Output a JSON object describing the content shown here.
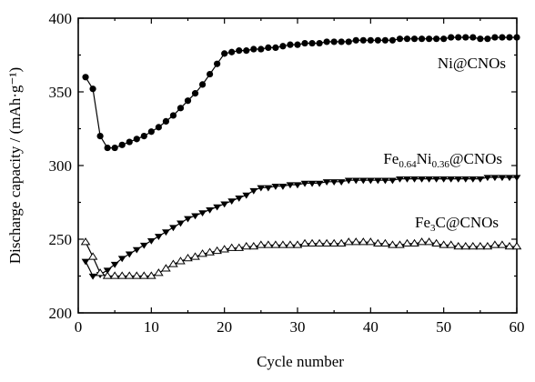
{
  "chart_data": {
    "type": "line",
    "xlabel": "Cycle number",
    "ylabel": "Discharge capacity / (mAh·g⁻¹)",
    "xlim": [
      0,
      60
    ],
    "ylim": [
      200,
      400
    ],
    "xticks": [
      "0",
      "10",
      "20",
      "30",
      "40",
      "50",
      "60"
    ],
    "yticks": [
      "200",
      "250",
      "300",
      "350",
      "400"
    ],
    "series": [
      {
        "name": "Ni@CNOs",
        "marker": "filled-circle",
        "x": [
          1,
          2,
          3,
          4,
          5,
          6,
          7,
          8,
          9,
          10,
          11,
          12,
          13,
          14,
          15,
          16,
          17,
          18,
          19,
          20,
          21,
          22,
          23,
          24,
          25,
          26,
          27,
          28,
          29,
          30,
          31,
          32,
          33,
          34,
          35,
          36,
          37,
          38,
          39,
          40,
          41,
          42,
          43,
          44,
          45,
          46,
          47,
          48,
          49,
          50,
          51,
          52,
          53,
          54,
          55,
          56,
          57,
          58,
          59,
          60
        ],
        "y": [
          360,
          352,
          320,
          312,
          312,
          314,
          316,
          318,
          320,
          323,
          326,
          330,
          334,
          339,
          344,
          349,
          355,
          362,
          369,
          376,
          377,
          378,
          378,
          379,
          379,
          380,
          380,
          381,
          382,
          382,
          383,
          383,
          383,
          384,
          384,
          384,
          384,
          385,
          385,
          385,
          385,
          385,
          385,
          386,
          386,
          386,
          386,
          386,
          386,
          386,
          387,
          387,
          387,
          387,
          386,
          386,
          387,
          387,
          387,
          387
        ]
      },
      {
        "name": "Fe0.64Ni0.36@CNOs",
        "name_parts": {
          "fe": "Fe",
          "fe_sub": "0.64",
          "ni": "Ni",
          "ni_sub": "0.36",
          "rest": "@CNOs"
        },
        "marker": "filled-down-triangle",
        "x": [
          1,
          2,
          3,
          4,
          5,
          6,
          7,
          8,
          9,
          10,
          11,
          12,
          13,
          14,
          15,
          16,
          17,
          18,
          19,
          20,
          21,
          22,
          23,
          24,
          25,
          26,
          27,
          28,
          29,
          30,
          31,
          32,
          33,
          34,
          35,
          36,
          37,
          38,
          39,
          40,
          41,
          42,
          43,
          44,
          45,
          46,
          47,
          48,
          49,
          50,
          51,
          52,
          53,
          54,
          55,
          56,
          57,
          58,
          59,
          60
        ],
        "y": [
          235,
          225,
          226,
          229,
          233,
          237,
          240,
          243,
          246,
          249,
          252,
          255,
          258,
          261,
          264,
          266,
          268,
          270,
          272,
          274,
          276,
          278,
          280,
          283,
          285,
          285,
          286,
          286,
          287,
          287,
          288,
          288,
          288,
          289,
          289,
          289,
          290,
          290,
          290,
          290,
          290,
          290,
          290,
          291,
          291,
          291,
          291,
          291,
          291,
          291,
          291,
          291,
          291,
          291,
          291,
          292,
          292,
          292,
          292,
          292
        ]
      },
      {
        "name": "Fe3C@CNOs",
        "name_parts": {
          "fe": "Fe",
          "fe_sub": "3",
          "rest": "C@CNOs"
        },
        "marker": "open-up-triangle",
        "x": [
          1,
          2,
          3,
          4,
          5,
          6,
          7,
          8,
          9,
          10,
          11,
          12,
          13,
          14,
          15,
          16,
          17,
          18,
          19,
          20,
          21,
          22,
          23,
          24,
          25,
          26,
          27,
          28,
          29,
          30,
          31,
          32,
          33,
          34,
          35,
          36,
          37,
          38,
          39,
          40,
          41,
          42,
          43,
          44,
          45,
          46,
          47,
          48,
          49,
          50,
          51,
          52,
          53,
          54,
          55,
          56,
          57,
          58,
          59,
          60
        ],
        "y": [
          248,
          238,
          227,
          225,
          225,
          225,
          225,
          225,
          225,
          225,
          227,
          230,
          233,
          235,
          237,
          238,
          240,
          241,
          242,
          243,
          244,
          244,
          245,
          245,
          246,
          246,
          246,
          246,
          246,
          246,
          247,
          247,
          247,
          247,
          247,
          247,
          248,
          248,
          248,
          248,
          247,
          247,
          246,
          246,
          247,
          247,
          248,
          248,
          247,
          246,
          246,
          245,
          245,
          245,
          245,
          245,
          246,
          246,
          245,
          245
        ]
      }
    ]
  }
}
